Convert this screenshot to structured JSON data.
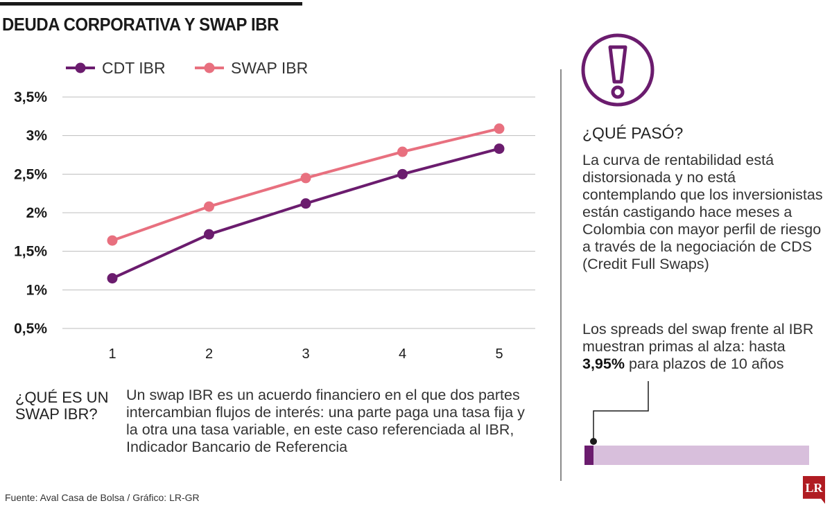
{
  "title": "DEUDA CORPORATIVA Y SWAP IBR",
  "colors": {
    "cdt": "#6b1c6e",
    "swap": "#e8707f",
    "grid": "#bdbdbd",
    "accent_light": "#d8bfdc"
  },
  "chart_data": {
    "type": "line",
    "x": [
      1,
      2,
      3,
      4,
      5
    ],
    "categories": [
      "1",
      "2",
      "3",
      "4",
      "5"
    ],
    "series": [
      {
        "name": "CDT IBR",
        "values": [
          1.15,
          1.72,
          2.12,
          2.5,
          2.83
        ]
      },
      {
        "name": "SWAP IBR",
        "values": [
          1.64,
          2.08,
          2.45,
          2.79,
          3.09
        ]
      }
    ],
    "ylim": [
      0.5,
      3.5
    ],
    "yticks": [
      3.5,
      3,
      2.5,
      2,
      1.5,
      1,
      0.5
    ],
    "ytick_labels": [
      "3,5%",
      "3%",
      "2,5%",
      "2%",
      "1,5%",
      "1%",
      "0,5%"
    ],
    "grid": true,
    "legend": "top-left"
  },
  "explainer": {
    "title": "¿QUÉ ES UN SWAP IBR?",
    "text": "Un swap IBR es un acuerdo financiero en el que dos partes intercambian flujos de interés: una parte paga una tasa fija y la otra una tasa variable, en este caso referenciada al IBR, Indicador Bancario de Referencia"
  },
  "sidebar": {
    "icon": "exclamation-icon",
    "title": "¿QUÉ PASÓ?",
    "text": "La curva de rentabilidad está distorsionada y no está contemplando que los inversionistas están castigando hace meses a Colombia con mayor perfil de riesgo a través de la negociación de CDS (Credit Full Swaps)",
    "spread_text_before": "Los spreads del swap frente al IBR muestran primas al alza: hasta ",
    "spread_value": "3,95%",
    "spread_text_after": " para plazos de 10 años"
  },
  "source": "Fuente: Aval Casa de Bolsa / Gráfico: LR-GR",
  "logo": "LR"
}
